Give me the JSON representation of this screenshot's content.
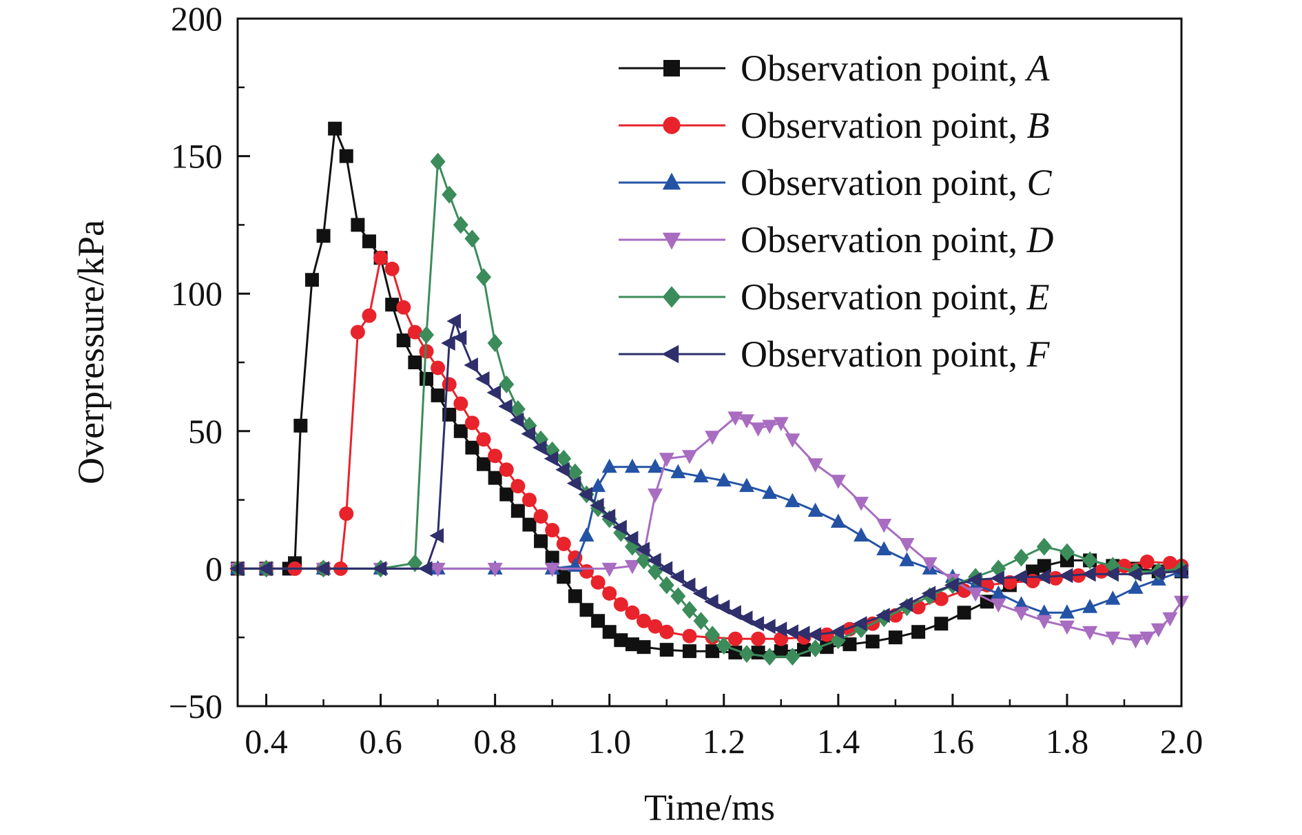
{
  "chart_data": {
    "type": "line",
    "title": "",
    "xlabel": "Time/ms",
    "ylabel": "Overpressure/kPa",
    "xlim": [
      0.35,
      2.0
    ],
    "ylim": [
      -50,
      200
    ],
    "xticks": [
      0.4,
      0.6,
      0.8,
      1.0,
      1.2,
      1.4,
      1.6,
      1.8,
      2.0
    ],
    "xtick_labels": [
      "0.4",
      "0.6",
      "0.8",
      "1.0",
      "1.2",
      "1.4",
      "1.6",
      "1.8",
      "2.0"
    ],
    "yticks": [
      -50,
      0,
      50,
      100,
      150,
      200
    ],
    "ytick_labels": [
      "−50",
      "0",
      "50",
      "100",
      "150",
      "200"
    ],
    "legend_position": "top-right",
    "series": [
      {
        "name": "Observation point, A",
        "legend_prefix": "Observation point, ",
        "legend_letter": "A",
        "color": "#111111",
        "marker": "square",
        "points": [
          [
            0.35,
            0
          ],
          [
            0.4,
            0
          ],
          [
            0.44,
            0
          ],
          [
            0.45,
            2
          ],
          [
            0.46,
            52
          ],
          [
            0.48,
            105
          ],
          [
            0.5,
            121
          ],
          [
            0.52,
            160
          ],
          [
            0.54,
            150
          ],
          [
            0.56,
            125
          ],
          [
            0.58,
            119
          ],
          [
            0.6,
            113
          ],
          [
            0.62,
            96
          ],
          [
            0.64,
            83
          ],
          [
            0.66,
            75
          ],
          [
            0.68,
            69
          ],
          [
            0.7,
            63
          ],
          [
            0.72,
            56
          ],
          [
            0.74,
            50
          ],
          [
            0.76,
            44
          ],
          [
            0.78,
            38
          ],
          [
            0.8,
            33
          ],
          [
            0.82,
            27
          ],
          [
            0.84,
            21
          ],
          [
            0.86,
            16
          ],
          [
            0.88,
            10
          ],
          [
            0.9,
            4
          ],
          [
            0.92,
            -3
          ],
          [
            0.94,
            -10
          ],
          [
            0.96,
            -15
          ],
          [
            0.98,
            -19
          ],
          [
            1.0,
            -23
          ],
          [
            1.02,
            -26
          ],
          [
            1.04,
            -27.5
          ],
          [
            1.06,
            -28.5
          ],
          [
            1.1,
            -29.5
          ],
          [
            1.14,
            -30
          ],
          [
            1.18,
            -30
          ],
          [
            1.22,
            -30.5
          ],
          [
            1.26,
            -30.5
          ],
          [
            1.3,
            -30
          ],
          [
            1.34,
            -29.5
          ],
          [
            1.38,
            -28.5
          ],
          [
            1.42,
            -27.5
          ],
          [
            1.46,
            -26.5
          ],
          [
            1.5,
            -25
          ],
          [
            1.54,
            -23
          ],
          [
            1.58,
            -20
          ],
          [
            1.62,
            -16
          ],
          [
            1.66,
            -12
          ],
          [
            1.7,
            -6
          ],
          [
            1.74,
            -1
          ],
          [
            1.76,
            1
          ],
          [
            1.8,
            3
          ],
          [
            1.84,
            3
          ],
          [
            1.88,
            1
          ],
          [
            1.92,
            0
          ],
          [
            1.96,
            -1
          ],
          [
            2.0,
            -1
          ]
        ]
      },
      {
        "name": "Observation point, B",
        "legend_prefix": "Observation point, ",
        "legend_letter": "B",
        "color": "#e8232b",
        "marker": "circle",
        "points": [
          [
            0.35,
            0
          ],
          [
            0.4,
            0
          ],
          [
            0.45,
            0
          ],
          [
            0.5,
            0
          ],
          [
            0.53,
            0
          ],
          [
            0.54,
            20
          ],
          [
            0.56,
            86
          ],
          [
            0.58,
            92
          ],
          [
            0.6,
            113
          ],
          [
            0.62,
            109
          ],
          [
            0.64,
            95
          ],
          [
            0.66,
            86
          ],
          [
            0.68,
            79
          ],
          [
            0.7,
            73
          ],
          [
            0.72,
            67
          ],
          [
            0.74,
            60
          ],
          [
            0.76,
            53
          ],
          [
            0.78,
            47
          ],
          [
            0.8,
            41
          ],
          [
            0.82,
            36
          ],
          [
            0.84,
            30
          ],
          [
            0.86,
            25
          ],
          [
            0.88,
            19
          ],
          [
            0.9,
            14
          ],
          [
            0.92,
            9
          ],
          [
            0.94,
            4
          ],
          [
            0.96,
            -1
          ],
          [
            0.98,
            -5
          ],
          [
            1.0,
            -9
          ],
          [
            1.02,
            -13
          ],
          [
            1.04,
            -16
          ],
          [
            1.06,
            -19
          ],
          [
            1.08,
            -21
          ],
          [
            1.1,
            -23
          ],
          [
            1.14,
            -24.5
          ],
          [
            1.18,
            -25
          ],
          [
            1.22,
            -25.5
          ],
          [
            1.26,
            -25.5
          ],
          [
            1.3,
            -25.5
          ],
          [
            1.34,
            -25
          ],
          [
            1.38,
            -24
          ],
          [
            1.42,
            -22
          ],
          [
            1.46,
            -20
          ],
          [
            1.5,
            -17
          ],
          [
            1.54,
            -14
          ],
          [
            1.58,
            -11
          ],
          [
            1.62,
            -8
          ],
          [
            1.66,
            -6
          ],
          [
            1.7,
            -5
          ],
          [
            1.74,
            -4.5
          ],
          [
            1.78,
            -3.5
          ],
          [
            1.82,
            -2.5
          ],
          [
            1.86,
            -1
          ],
          [
            1.9,
            1
          ],
          [
            1.94,
            2.5
          ],
          [
            1.98,
            2
          ],
          [
            2.0,
            1
          ]
        ]
      },
      {
        "name": "Observation point, C",
        "legend_prefix": "Observation point, ",
        "legend_letter": "C",
        "color": "#2453a5",
        "marker": "triangle-up",
        "points": [
          [
            0.35,
            0
          ],
          [
            0.4,
            0
          ],
          [
            0.5,
            0
          ],
          [
            0.6,
            0
          ],
          [
            0.7,
            0
          ],
          [
            0.8,
            0
          ],
          [
            0.9,
            0
          ],
          [
            0.94,
            1
          ],
          [
            0.96,
            12
          ],
          [
            0.98,
            30
          ],
          [
            1.0,
            37
          ],
          [
            1.04,
            37
          ],
          [
            1.08,
            37
          ],
          [
            1.12,
            35
          ],
          [
            1.16,
            33.5
          ],
          [
            1.2,
            32
          ],
          [
            1.24,
            30
          ],
          [
            1.28,
            27.5
          ],
          [
            1.32,
            24.5
          ],
          [
            1.36,
            21
          ],
          [
            1.4,
            17
          ],
          [
            1.44,
            12
          ],
          [
            1.48,
            7
          ],
          [
            1.52,
            3
          ],
          [
            1.56,
            0
          ],
          [
            1.6,
            -3
          ],
          [
            1.64,
            -6
          ],
          [
            1.68,
            -9
          ],
          [
            1.72,
            -13
          ],
          [
            1.76,
            -16
          ],
          [
            1.8,
            -16
          ],
          [
            1.84,
            -14
          ],
          [
            1.88,
            -11
          ],
          [
            1.92,
            -7
          ],
          [
            1.96,
            -4
          ],
          [
            2.0,
            -1
          ]
        ]
      },
      {
        "name": "Observation point, D",
        "legend_prefix": "Observation point, ",
        "legend_letter": "D",
        "color": "#a86cc1",
        "marker": "triangle-down",
        "points": [
          [
            0.35,
            0
          ],
          [
            0.4,
            0
          ],
          [
            0.5,
            0
          ],
          [
            0.6,
            0
          ],
          [
            0.7,
            0
          ],
          [
            0.8,
            0
          ],
          [
            0.9,
            0
          ],
          [
            1.0,
            0
          ],
          [
            1.04,
            1
          ],
          [
            1.06,
            5
          ],
          [
            1.08,
            27
          ],
          [
            1.1,
            40
          ],
          [
            1.14,
            41
          ],
          [
            1.18,
            48
          ],
          [
            1.22,
            55
          ],
          [
            1.24,
            54
          ],
          [
            1.26,
            51
          ],
          [
            1.28,
            52
          ],
          [
            1.3,
            53
          ],
          [
            1.32,
            47
          ],
          [
            1.36,
            38
          ],
          [
            1.4,
            32
          ],
          [
            1.44,
            24
          ],
          [
            1.48,
            16
          ],
          [
            1.52,
            9
          ],
          [
            1.56,
            2
          ],
          [
            1.6,
            -4
          ],
          [
            1.64,
            -9
          ],
          [
            1.68,
            -13
          ],
          [
            1.72,
            -16
          ],
          [
            1.76,
            -19
          ],
          [
            1.8,
            -21
          ],
          [
            1.84,
            -23
          ],
          [
            1.88,
            -25
          ],
          [
            1.92,
            -26
          ],
          [
            1.94,
            -25
          ],
          [
            1.96,
            -22
          ],
          [
            1.98,
            -18
          ],
          [
            2.0,
            -12
          ]
        ]
      },
      {
        "name": "Observation point, E",
        "legend_prefix": "Observation point, ",
        "legend_letter": "E",
        "color": "#3b8c5a",
        "marker": "diamond",
        "points": [
          [
            0.35,
            0
          ],
          [
            0.4,
            0
          ],
          [
            0.5,
            0
          ],
          [
            0.6,
            0
          ],
          [
            0.66,
            2
          ],
          [
            0.68,
            85
          ],
          [
            0.7,
            148
          ],
          [
            0.72,
            136
          ],
          [
            0.74,
            125
          ],
          [
            0.76,
            120
          ],
          [
            0.78,
            106
          ],
          [
            0.8,
            82
          ],
          [
            0.82,
            67
          ],
          [
            0.84,
            58
          ],
          [
            0.86,
            52
          ],
          [
            0.88,
            47
          ],
          [
            0.9,
            43
          ],
          [
            0.92,
            40
          ],
          [
            0.94,
            35
          ],
          [
            0.96,
            27
          ],
          [
            0.98,
            22
          ],
          [
            1.0,
            18
          ],
          [
            1.02,
            13
          ],
          [
            1.04,
            8
          ],
          [
            1.06,
            3
          ],
          [
            1.08,
            -1
          ],
          [
            1.1,
            -6
          ],
          [
            1.12,
            -10
          ],
          [
            1.14,
            -15
          ],
          [
            1.16,
            -19
          ],
          [
            1.18,
            -24
          ],
          [
            1.2,
            -28
          ],
          [
            1.24,
            -31
          ],
          [
            1.28,
            -32
          ],
          [
            1.32,
            -32
          ],
          [
            1.36,
            -29
          ],
          [
            1.4,
            -26
          ],
          [
            1.44,
            -22
          ],
          [
            1.48,
            -18
          ],
          [
            1.52,
            -14
          ],
          [
            1.56,
            -10
          ],
          [
            1.6,
            -6
          ],
          [
            1.64,
            -3
          ],
          [
            1.68,
            0
          ],
          [
            1.72,
            4
          ],
          [
            1.76,
            8
          ],
          [
            1.8,
            6
          ],
          [
            1.84,
            3
          ],
          [
            1.88,
            1
          ],
          [
            1.92,
            -1
          ],
          [
            1.96,
            -1
          ],
          [
            2.0,
            0
          ]
        ]
      },
      {
        "name": "Observation point, F",
        "legend_prefix": "Observation point, ",
        "legend_letter": "F",
        "color": "#2e2f6b",
        "marker": "triangle-left",
        "points": [
          [
            0.35,
            0
          ],
          [
            0.4,
            0
          ],
          [
            0.5,
            0
          ],
          [
            0.6,
            0
          ],
          [
            0.68,
            0
          ],
          [
            0.7,
            12
          ],
          [
            0.72,
            82
          ],
          [
            0.73,
            90
          ],
          [
            0.74,
            84
          ],
          [
            0.76,
            74
          ],
          [
            0.78,
            69
          ],
          [
            0.8,
            64
          ],
          [
            0.82,
            59
          ],
          [
            0.84,
            54
          ],
          [
            0.86,
            49
          ],
          [
            0.88,
            44
          ],
          [
            0.9,
            40
          ],
          [
            0.92,
            36
          ],
          [
            0.94,
            31
          ],
          [
            0.96,
            27
          ],
          [
            0.98,
            23
          ],
          [
            1.0,
            19
          ],
          [
            1.02,
            15
          ],
          [
            1.04,
            11
          ],
          [
            1.06,
            7
          ],
          [
            1.08,
            3
          ],
          [
            1.1,
            0
          ],
          [
            1.12,
            -3
          ],
          [
            1.14,
            -6
          ],
          [
            1.16,
            -9
          ],
          [
            1.18,
            -12
          ],
          [
            1.2,
            -14
          ],
          [
            1.22,
            -16
          ],
          [
            1.24,
            -18
          ],
          [
            1.26,
            -20
          ],
          [
            1.28,
            -21
          ],
          [
            1.3,
            -22
          ],
          [
            1.32,
            -23
          ],
          [
            1.34,
            -23.5
          ],
          [
            1.36,
            -24
          ],
          [
            1.4,
            -23
          ],
          [
            1.44,
            -20
          ],
          [
            1.48,
            -17
          ],
          [
            1.52,
            -13
          ],
          [
            1.56,
            -9
          ],
          [
            1.6,
            -6
          ],
          [
            1.64,
            -4
          ],
          [
            1.68,
            -3.5
          ],
          [
            1.72,
            -3
          ],
          [
            1.76,
            -3
          ],
          [
            1.8,
            -2.5
          ],
          [
            1.84,
            -2
          ],
          [
            1.88,
            -2
          ],
          [
            1.92,
            -2
          ],
          [
            1.96,
            -1.5
          ],
          [
            2.0,
            -1
          ]
        ]
      }
    ]
  }
}
